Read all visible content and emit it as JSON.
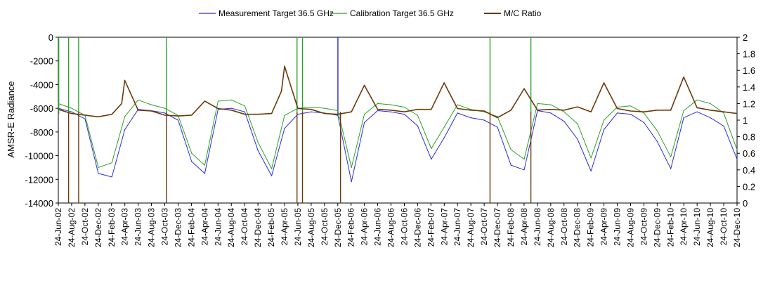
{
  "chart_data": {
    "type": "line",
    "title": "",
    "ylabel": "AMSR-E Radiance",
    "y2label": "",
    "ylim": [
      -14000,
      0
    ],
    "y2lim": [
      0,
      2
    ],
    "yticks": [
      "0",
      "-2000",
      "-4000",
      "-6000",
      "-8000",
      "-10000",
      "-12000",
      "-14000"
    ],
    "y2ticks": [
      "2",
      "1.8",
      "1.6",
      "1.4",
      "1.2",
      "1",
      "0.8",
      "0.6",
      "0.4",
      "0.2",
      "0"
    ],
    "xticks": [
      "24-Jun-02",
      "24-Aug-02",
      "24-Oct-02",
      "24-Dec-02",
      "24-Feb-03",
      "24-Apr-03",
      "24-Jun-03",
      "24-Aug-03",
      "24-Oct-03",
      "24-Dec-03",
      "24-Feb-04",
      "24-Apr-04",
      "24-Jun-04",
      "24-Aug-04",
      "24-Oct-04",
      "24-Dec-04",
      "24-Feb-05",
      "24-Apr-05",
      "24-Jun-05",
      "24-Aug-05",
      "24-Oct-05",
      "24-Dec-05",
      "24-Feb-06",
      "24-Apr-06",
      "24-Jun-06",
      "24-Aug-06",
      "24-Oct-06",
      "24-Dec-06",
      "24-Feb-07",
      "24-Apr-07",
      "24-Jun-07",
      "24-Aug-07",
      "24-Oct-07",
      "24-Dec-07",
      "24-Feb-08",
      "24-Apr-08",
      "24-Jun-08",
      "24-Aug-08",
      "24-Oct-08",
      "24-Dec-08",
      "24-Feb-09",
      "24-Apr-09",
      "24-Jun-09",
      "24-Aug-09",
      "24-Oct-09",
      "24-Dec-09",
      "24-Feb-10",
      "24-Apr-10",
      "24-Jun-10",
      "24-Aug-10",
      "24-Oct-10",
      "24-Dec-10"
    ],
    "grid": false,
    "legend_position": "top",
    "series": [
      {
        "name": "Measurement Target 36.5 GHz",
        "axis": "left",
        "color": "#2b2bdc",
        "x": [
          "2002-06-24",
          "2002-08-24",
          "2002-10-24",
          "2002-12-24",
          "2003-02-24",
          "2003-04-24",
          "2003-06-24",
          "2003-08-24",
          "2003-10-24",
          "2003-12-24",
          "2004-02-24",
          "2004-04-24",
          "2004-06-24",
          "2004-08-24",
          "2004-10-24",
          "2004-12-24",
          "2005-02-24",
          "2005-04-24",
          "2005-06-24",
          "2005-08-24",
          "2005-10-24",
          "2005-12-24",
          "2006-02-24",
          "2006-04-24",
          "2006-06-24",
          "2006-08-24",
          "2006-10-24",
          "2006-12-24",
          "2007-02-24",
          "2007-04-24",
          "2007-06-24",
          "2007-08-24",
          "2007-10-24",
          "2007-12-24",
          "2008-02-24",
          "2008-04-24",
          "2008-06-24",
          "2008-08-24",
          "2008-10-24",
          "2008-12-24",
          "2009-02-24",
          "2009-04-24",
          "2009-06-24",
          "2009-08-24",
          "2009-10-24",
          "2009-12-24",
          "2010-02-24",
          "2010-04-24",
          "2010-06-24",
          "2010-08-24",
          "2010-10-24",
          "2010-12-24"
        ],
        "values": [
          -6000,
          -6300,
          -6900,
          -11500,
          -11800,
          -7800,
          -6100,
          -6200,
          -6400,
          -7000,
          -10500,
          -11500,
          -6100,
          -6000,
          -6300,
          -9600,
          -11700,
          -7700,
          -6500,
          -6300,
          -6400,
          -6600,
          -12200,
          -7200,
          -6200,
          -6300,
          -6500,
          -7500,
          -10300,
          -8500,
          -6400,
          -6800,
          -7000,
          -7600,
          -10800,
          -11200,
          -6200,
          -6400,
          -7100,
          -8600,
          -11300,
          -7800,
          -6400,
          -6500,
          -7200,
          -8800,
          -11100,
          -6800,
          -6300,
          -6800,
          -7500,
          -10300
        ],
        "spikes": [
          {
            "x": "2005-12-24",
            "y": 0
          }
        ]
      },
      {
        "name": "Calibration Target 36.5 GHz",
        "axis": "left",
        "color": "#2aa12a",
        "x": [
          "2002-06-24",
          "2002-08-24",
          "2002-10-24",
          "2002-12-24",
          "2003-02-24",
          "2003-04-24",
          "2003-06-24",
          "2003-08-24",
          "2003-10-24",
          "2003-12-24",
          "2004-02-24",
          "2004-04-24",
          "2004-06-24",
          "2004-08-24",
          "2004-10-24",
          "2004-12-24",
          "2005-02-24",
          "2005-04-24",
          "2005-06-24",
          "2005-08-24",
          "2005-10-24",
          "2005-12-24",
          "2006-02-24",
          "2006-04-24",
          "2006-06-24",
          "2006-08-24",
          "2006-10-24",
          "2006-12-24",
          "2007-02-24",
          "2007-04-24",
          "2007-06-24",
          "2007-08-24",
          "2007-10-24",
          "2007-12-24",
          "2008-02-24",
          "2008-04-24",
          "2008-06-24",
          "2008-08-24",
          "2008-10-24",
          "2008-12-24",
          "2009-02-24",
          "2009-04-24",
          "2009-06-24",
          "2009-08-24",
          "2009-10-24",
          "2009-12-24",
          "2010-02-24",
          "2010-04-24",
          "2010-06-24",
          "2010-08-24",
          "2010-10-24",
          "2010-12-24"
        ],
        "values": [
          -5600,
          -6000,
          -6600,
          -11000,
          -10600,
          -6700,
          -5300,
          -5700,
          -6000,
          -6600,
          -9800,
          -10800,
          -5400,
          -5300,
          -5800,
          -8900,
          -11100,
          -6600,
          -6000,
          -5900,
          -6000,
          -6200,
          -11000,
          -6500,
          -5600,
          -5700,
          -5900,
          -6600,
          -9400,
          -7600,
          -5700,
          -6100,
          -6300,
          -6700,
          -9500,
          -10300,
          -5600,
          -5700,
          -6300,
          -7300,
          -10200,
          -7000,
          -5900,
          -5800,
          -6400,
          -7900,
          -10100,
          -6200,
          -5300,
          -5600,
          -6400,
          -9500
        ],
        "spikes": [
          {
            "x": "2002-06-26",
            "y": 0
          },
          {
            "x": "2002-08-10",
            "y": 0
          },
          {
            "x": "2002-09-25",
            "y": 0
          },
          {
            "x": "2003-11-01",
            "y": 0
          },
          {
            "x": "2005-06-20",
            "y": 0
          },
          {
            "x": "2005-07-15",
            "y": 0
          },
          {
            "x": "2007-11-20",
            "y": 0
          },
          {
            "x": "2008-05-25",
            "y": 0
          }
        ]
      },
      {
        "name": "M/C Ratio",
        "axis": "right",
        "color": "#6b3a0a",
        "x": [
          "2002-06-24",
          "2002-08-24",
          "2002-10-24",
          "2002-12-24",
          "2003-02-24",
          "2003-04-10",
          "2003-04-24",
          "2003-06-24",
          "2003-08-24",
          "2003-10-24",
          "2003-12-24",
          "2004-02-24",
          "2004-04-24",
          "2004-06-24",
          "2004-08-24",
          "2004-10-24",
          "2004-12-24",
          "2005-02-24",
          "2005-04-10",
          "2005-04-24",
          "2005-06-24",
          "2005-08-24",
          "2005-10-24",
          "2005-12-24",
          "2006-02-24",
          "2006-04-24",
          "2006-06-24",
          "2006-08-24",
          "2006-10-24",
          "2006-12-24",
          "2007-02-24",
          "2007-04-24",
          "2007-06-24",
          "2007-08-24",
          "2007-10-24",
          "2007-12-24",
          "2008-02-24",
          "2008-04-24",
          "2008-06-24",
          "2008-08-24",
          "2008-10-24",
          "2008-12-24",
          "2009-02-24",
          "2009-04-24",
          "2009-06-24",
          "2009-08-24",
          "2009-10-24",
          "2009-12-24",
          "2010-02-24",
          "2010-04-24",
          "2010-06-24",
          "2010-08-24",
          "2010-10-24",
          "2010-12-24"
        ],
        "values": [
          1.13,
          1.08,
          1.06,
          1.04,
          1.07,
          1.2,
          1.48,
          1.12,
          1.11,
          1.06,
          1.05,
          1.06,
          1.23,
          1.14,
          1.12,
          1.07,
          1.07,
          1.08,
          1.35,
          1.65,
          1.14,
          1.13,
          1.08,
          1.07,
          1.1,
          1.42,
          1.13,
          1.12,
          1.1,
          1.13,
          1.13,
          1.45,
          1.14,
          1.12,
          1.11,
          1.03,
          1.12,
          1.38,
          1.12,
          1.13,
          1.12,
          1.16,
          1.1,
          1.45,
          1.14,
          1.11,
          1.1,
          1.12,
          1.12,
          1.52,
          1.15,
          1.12,
          1.1,
          1.08
        ],
        "spikes": [
          {
            "x": "2002-08-10",
            "y": 0
          },
          {
            "x": "2002-09-25",
            "y": 0
          },
          {
            "x": "2003-11-01",
            "y": 0
          },
          {
            "x": "2005-06-20",
            "y": 0
          },
          {
            "x": "2005-07-15",
            "y": 0
          },
          {
            "x": "2006-01-05",
            "y": 0
          },
          {
            "x": "2007-11-20",
            "y": 0
          },
          {
            "x": "2008-05-25",
            "y": 0
          }
        ]
      }
    ]
  }
}
